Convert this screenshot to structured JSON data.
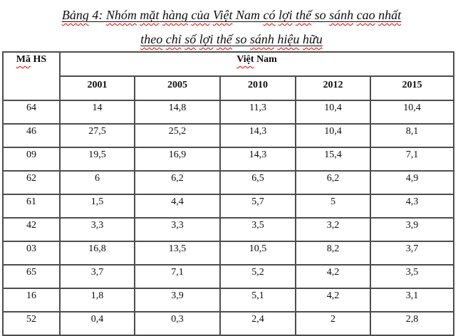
{
  "title": {
    "line1_words": [
      {
        "t": "Bảng",
        "sp": true
      },
      {
        "t": "4:",
        "sp": false
      },
      {
        "t": "Nhóm",
        "sp": true
      },
      {
        "t": "mặt",
        "sp": true
      },
      {
        "t": "hàng",
        "sp": true
      },
      {
        "t": "của",
        "sp": true
      },
      {
        "t": "Việt",
        "sp": true
      },
      {
        "t": "Nam",
        "sp": false
      },
      {
        "t": "có",
        "sp": true
      },
      {
        "t": "lợi",
        "sp": true
      },
      {
        "t": "thế",
        "sp": true
      },
      {
        "t": "so",
        "sp": false
      },
      {
        "t": "sánh",
        "sp": true
      },
      {
        "t": "cao",
        "sp": true
      },
      {
        "t": "nhất",
        "sp": true
      }
    ],
    "line2_words": [
      {
        "t": "theo",
        "sp": true
      },
      {
        "t": "chỉ",
        "sp": true
      },
      {
        "t": "số",
        "sp": true
      },
      {
        "t": "lợi",
        "sp": true
      },
      {
        "t": "thế",
        "sp": true
      },
      {
        "t": "so",
        "sp": false
      },
      {
        "t": "sánh",
        "sp": true
      },
      {
        "t": "hiệu",
        "sp": true
      },
      {
        "t": "hữu",
        "sp": true
      }
    ]
  },
  "table": {
    "corner_header_words": [
      {
        "t": "Mã",
        "sp": true
      },
      {
        "t": "HS",
        "sp": false
      }
    ],
    "group_header_words": [
      {
        "t": "Việt",
        "sp": true
      },
      {
        "t": "Nam",
        "sp": false
      }
    ],
    "year_headers": [
      "2001",
      "2005",
      "2010",
      "2012",
      "2015"
    ],
    "rows": [
      {
        "code": "64",
        "values": [
          "14",
          "14,8",
          "11,3",
          "10,4",
          "10,4"
        ]
      },
      {
        "code": "46",
        "values": [
          "27,5",
          "25,2",
          "14,3",
          "10,4",
          "8,1"
        ]
      },
      {
        "code": "09",
        "values": [
          "19,5",
          "16,9",
          "14,3",
          "15,4",
          "7,1"
        ]
      },
      {
        "code": "62",
        "values": [
          "6",
          "6,2",
          "6,5",
          "6,2",
          "4,9"
        ]
      },
      {
        "code": "61",
        "values": [
          "1,5",
          "4,4",
          "5,7",
          "5",
          "4,3"
        ]
      },
      {
        "code": "42",
        "values": [
          "3,3",
          "3,3",
          "3,5",
          "3,2",
          "3,9"
        ]
      },
      {
        "code": "03",
        "values": [
          "16,8",
          "13,5",
          "10,5",
          "8,2",
          "3,7"
        ]
      },
      {
        "code": "65",
        "values": [
          "3,7",
          "7,1",
          "5,2",
          "4,2",
          "3,5"
        ]
      },
      {
        "code": "16",
        "values": [
          "1,8",
          "3,9",
          "5,1",
          "4,2",
          "3,1"
        ]
      },
      {
        "code": "52",
        "values": [
          "0,4",
          "0,3",
          "2,4",
          "2",
          "2,8"
        ]
      }
    ],
    "colors": {
      "border": "#4d4d4d",
      "spellcheck_wavy": "#e00000",
      "text": "#0e0e0e"
    }
  }
}
